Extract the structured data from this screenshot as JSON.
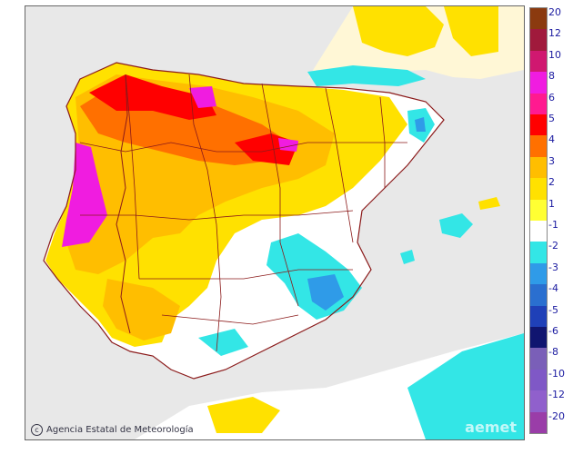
{
  "credit": {
    "symbol": "c",
    "text": "Agencia Estatal de Meteorología"
  },
  "watermark": "aemet",
  "legend": {
    "labels": [
      "20",
      "12",
      "10",
      "8",
      "6",
      "5",
      "4",
      "3",
      "2",
      "1",
      "-1",
      "-2",
      "-3",
      "-4",
      "-5",
      "-6",
      "-8",
      "-10",
      "-12",
      "-20"
    ],
    "colors": [
      "#8b3a0f",
      "#a01a3c",
      "#d01870",
      "#f01ce0",
      "#ff1a90",
      "#ff0000",
      "#ff7000",
      "#ffbe00",
      "#ffe100",
      "#ffff33",
      "#ffffff",
      "#33e6e6",
      "#2f9be8",
      "#2a6fd0",
      "#1f40b8",
      "#101570",
      "#7a5fb8",
      "#7f58c6",
      "#9060cc",
      "#9a3da8"
    ]
  },
  "palette": {
    "sea": "#e8e8e8",
    "land_base": "#ffffff",
    "border": "#8b1a1a",
    "outside": "#ffe100"
  }
}
